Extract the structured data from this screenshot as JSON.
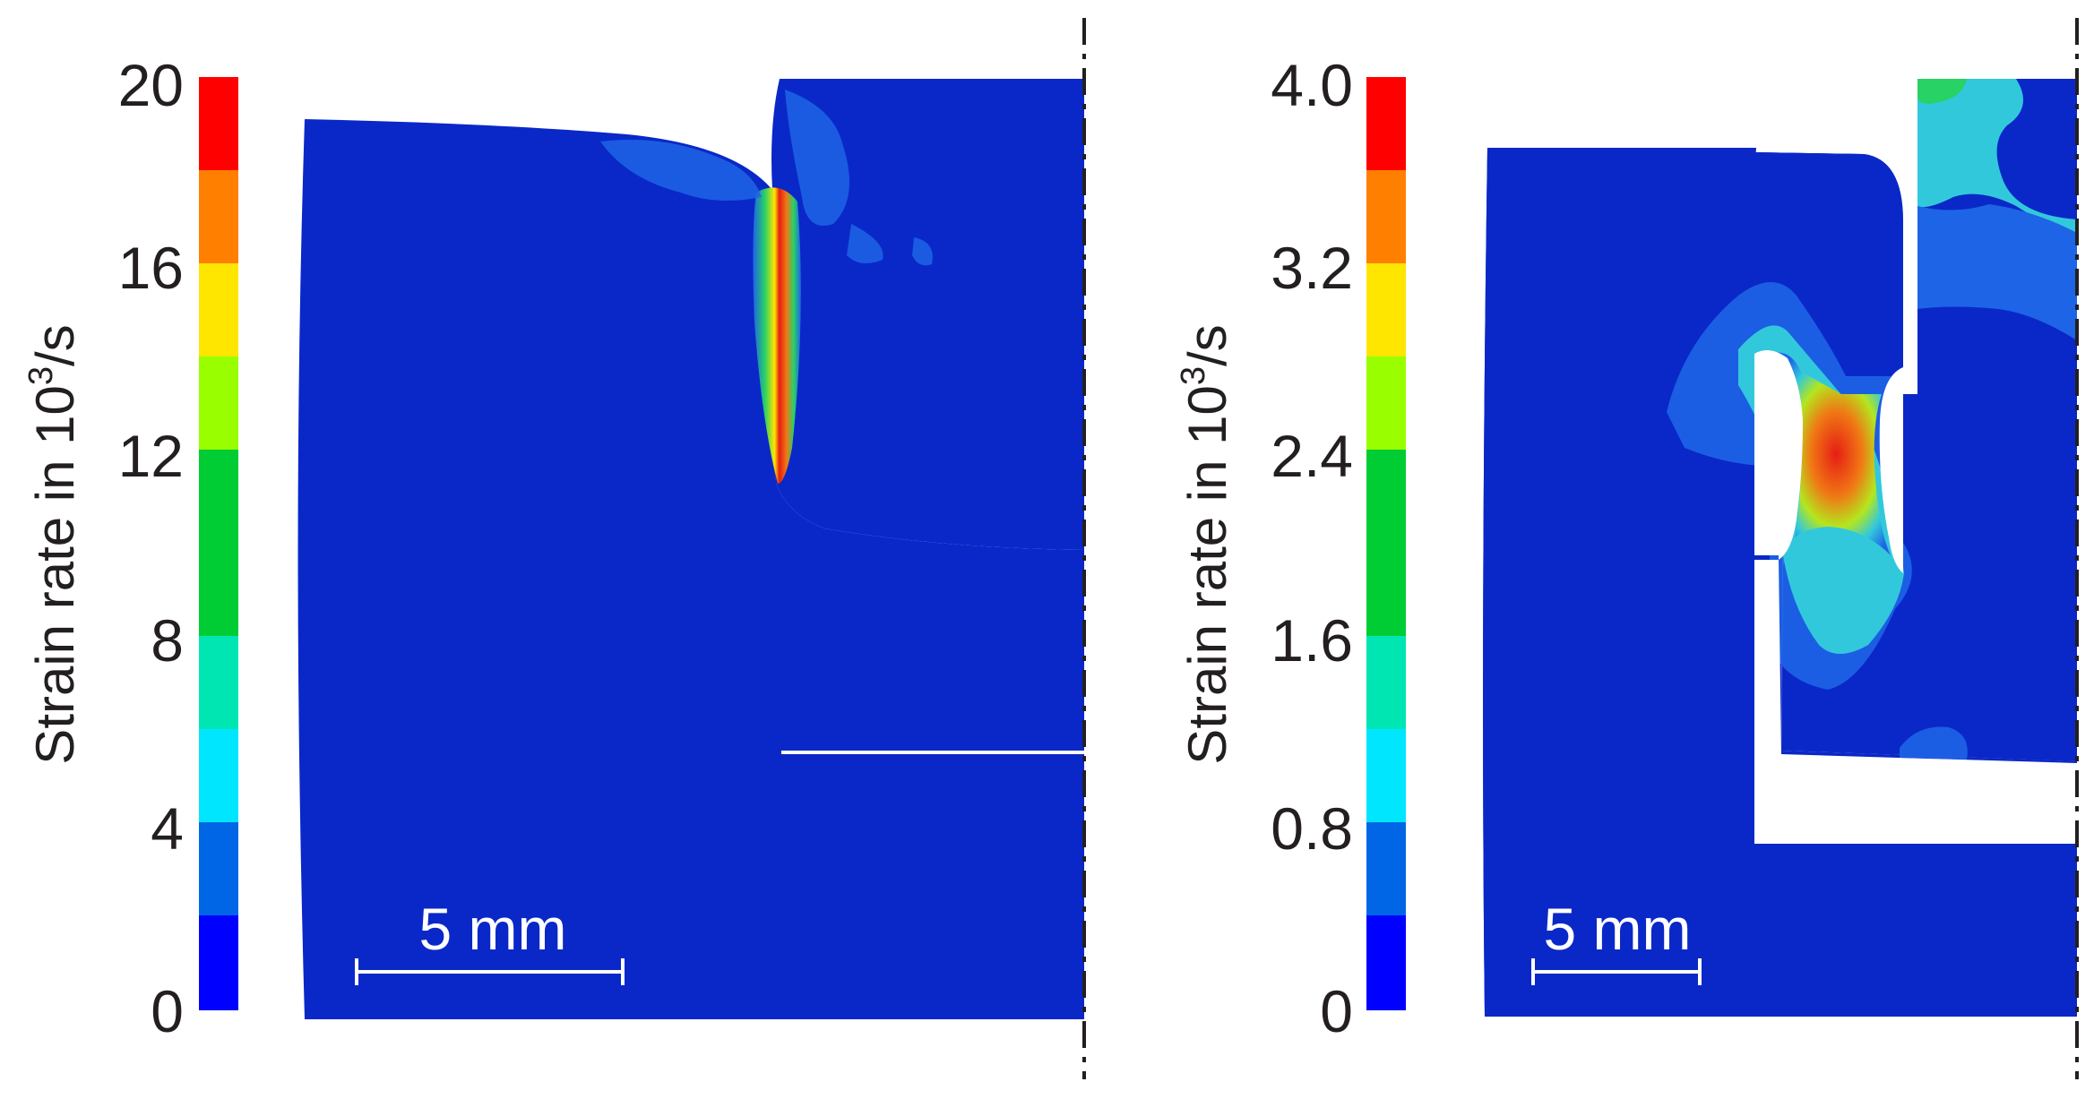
{
  "panels": [
    {
      "colorbar": {
        "label_prefix": "Strain rate in 10",
        "label_exp": "3",
        "label_suffix": "/s",
        "ticks": [
          "20",
          "16",
          "12",
          "8",
          "4",
          "0"
        ]
      },
      "scale_bar": {
        "label": "5 mm"
      }
    },
    {
      "colorbar": {
        "label_prefix": "Strain rate in 10",
        "label_exp": "3",
        "label_suffix": "/s",
        "ticks": [
          "4.0",
          "3.2",
          "2.4",
          "1.6",
          "0.8",
          "0"
        ]
      },
      "scale_bar": {
        "label": "5 mm"
      }
    }
  ],
  "colors": {
    "colormap": [
      "#0000ff",
      "#0066e6",
      "#00b3ff",
      "#00e6b3",
      "#00cc33",
      "#33e600",
      "#99ff00",
      "#ffe600",
      "#ff7f00",
      "#ff0000"
    ],
    "base": "#0a28c8",
    "low": "#1e64e6",
    "mid_cyan": "#32c8dc",
    "mid_green": "#28d264",
    "yellow_green": "#b4e61e",
    "orange": "#f07814",
    "red": "#e61e14",
    "text": "#231f20"
  }
}
